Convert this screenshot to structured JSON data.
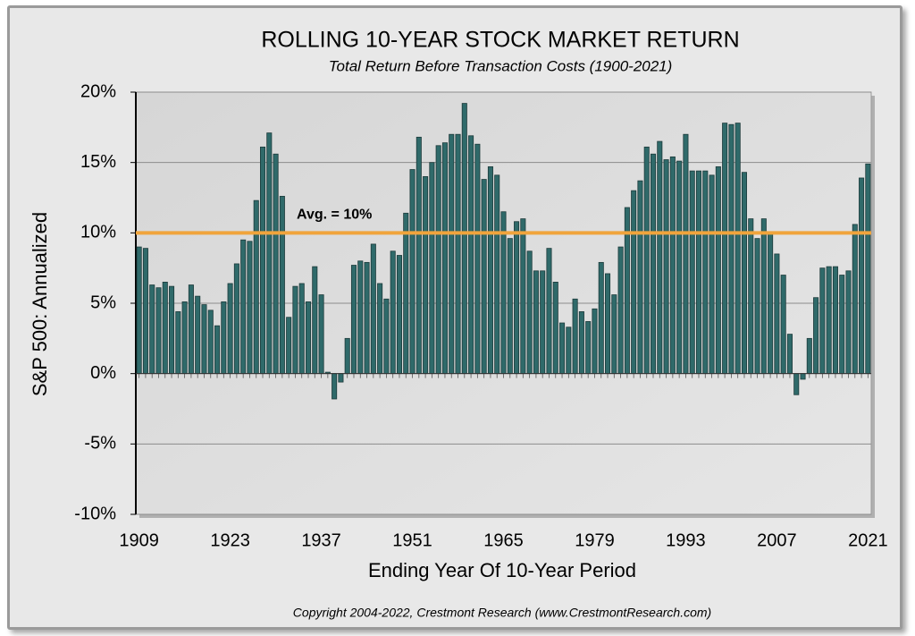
{
  "chart_data": {
    "type": "bar",
    "title": "ROLLING 10-YEAR STOCK MARKET RETURN",
    "subtitle": "Total Return Before Transaction Costs (1900-2021)",
    "x_label": "Ending Year Of 10-Year Period",
    "y_label": "S&P 500: Annualized",
    "copyright": "Copyright 2004-2022, Crestmont Research (www.CrestmontResearch.com)",
    "color": "#2f6a6a",
    "grid": true,
    "average": {
      "value": 10,
      "label": "Avg. = 10%",
      "color": "#f0a43c"
    },
    "ylim": [
      -10,
      20
    ],
    "yticks": [
      {
        "value": -10,
        "label": "-10%"
      },
      {
        "value": -5,
        "label": "-5%"
      },
      {
        "value": 0,
        "label": "0%"
      },
      {
        "value": 5,
        "label": "5%"
      },
      {
        "value": 10,
        "label": "10%"
      },
      {
        "value": 15,
        "label": "15%"
      },
      {
        "value": 20,
        "label": "20%"
      }
    ],
    "categories": [
      "1909",
      null,
      null,
      null,
      null,
      null,
      null,
      null,
      null,
      null,
      null,
      null,
      null,
      null,
      "1923",
      null,
      null,
      null,
      null,
      null,
      null,
      null,
      null,
      null,
      null,
      null,
      null,
      null,
      "1937",
      null,
      null,
      null,
      null,
      null,
      null,
      null,
      null,
      null,
      null,
      null,
      null,
      null,
      "1951",
      null,
      null,
      null,
      null,
      null,
      null,
      null,
      null,
      null,
      null,
      null,
      null,
      null,
      "1965",
      null,
      null,
      null,
      null,
      null,
      null,
      null,
      null,
      null,
      null,
      null,
      null,
      null,
      "1979",
      null,
      null,
      null,
      null,
      null,
      null,
      null,
      null,
      null,
      null,
      null,
      null,
      null,
      "1993",
      null,
      null,
      null,
      null,
      null,
      null,
      null,
      null,
      null,
      null,
      null,
      null,
      null,
      "2007",
      null,
      null,
      null,
      null,
      null,
      null,
      null,
      null,
      null,
      null,
      null,
      null,
      null,
      "2021"
    ],
    "values": [
      9.0,
      8.9,
      6.3,
      6.1,
      6.5,
      6.2,
      4.4,
      5.1,
      6.3,
      5.5,
      4.9,
      4.5,
      3.4,
      5.1,
      6.4,
      7.8,
      9.5,
      9.4,
      12.3,
      16.1,
      17.1,
      15.6,
      12.6,
      4.0,
      6.2,
      6.4,
      5.1,
      7.6,
      5.6,
      0.1,
      -1.8,
      -0.6,
      2.5,
      7.7,
      8.0,
      7.9,
      9.2,
      6.4,
      5.3,
      8.7,
      8.4,
      11.4,
      14.5,
      16.8,
      14.0,
      15.0,
      16.2,
      16.4,
      17.0,
      17.0,
      19.2,
      16.9,
      16.3,
      13.8,
      14.7,
      14.1,
      11.5,
      9.6,
      10.8,
      11.0,
      8.7,
      7.3,
      7.3,
      8.9,
      6.5,
      3.6,
      3.3,
      5.3,
      4.4,
      3.7,
      4.6,
      7.9,
      7.1,
      5.6,
      9.0,
      11.8,
      13.0,
      13.7,
      16.1,
      15.6,
      16.5,
      15.2,
      15.4,
      15.1,
      17.0,
      14.4,
      14.4,
      14.4,
      14.1,
      14.7,
      17.8,
      17.7,
      17.8,
      14.3,
      11.0,
      9.6,
      11.0,
      10.0,
      8.5,
      7.0,
      2.8,
      -1.5,
      -0.4,
      2.5,
      5.4,
      7.5,
      7.6,
      7.6,
      7.0,
      7.3,
      10.6,
      13.9,
      14.9
    ]
  }
}
